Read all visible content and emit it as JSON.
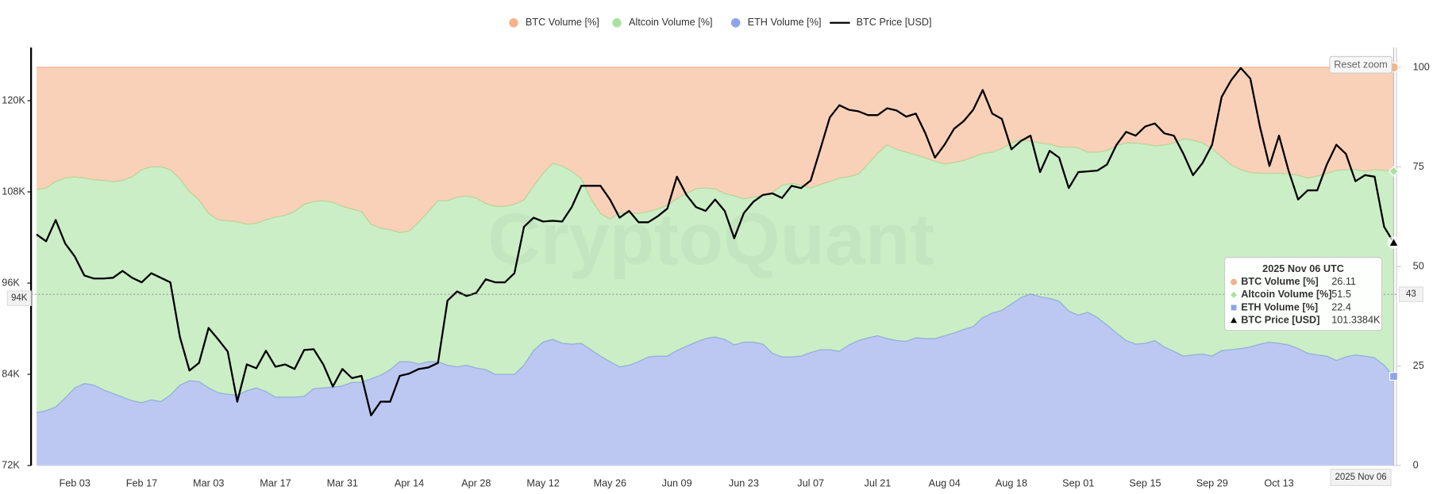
{
  "chart_data": {
    "type": "area",
    "stacked": true,
    "x": [
      "Jan 26",
      "Jan 28",
      "Jan 30",
      "Feb 01",
      "Feb 03",
      "Feb 05",
      "Feb 07",
      "Feb 09",
      "Feb 11",
      "Feb 13",
      "Feb 15",
      "Feb 17",
      "Feb 19",
      "Feb 21",
      "Feb 23",
      "Feb 25",
      "Feb 27",
      "Mar 01",
      "Mar 03",
      "Mar 05",
      "Mar 07",
      "Mar 09",
      "Mar 11",
      "Mar 13",
      "Mar 15",
      "Mar 17",
      "Mar 19",
      "Mar 21",
      "Mar 23",
      "Mar 25",
      "Mar 27",
      "Mar 29",
      "Mar 31",
      "Apr 02",
      "Apr 04",
      "Apr 06",
      "Apr 08",
      "Apr 10",
      "Apr 12",
      "Apr 14",
      "Apr 16",
      "Apr 18",
      "Apr 20",
      "Apr 22",
      "Apr 24",
      "Apr 26",
      "Apr 28",
      "Apr 30",
      "May 02",
      "May 04",
      "May 06",
      "May 08",
      "May 10",
      "May 12",
      "May 14",
      "May 16",
      "May 18",
      "May 20",
      "May 22",
      "May 24",
      "May 26",
      "May 28",
      "May 30",
      "Jun 01",
      "Jun 03",
      "Jun 05",
      "Jun 07",
      "Jun 09",
      "Jun 11",
      "Jun 13",
      "Jun 15",
      "Jun 17",
      "Jun 19",
      "Jun 21",
      "Jun 23",
      "Jun 25",
      "Jun 27",
      "Jun 29",
      "Jul 01",
      "Jul 03",
      "Jul 05",
      "Jul 07",
      "Jul 09",
      "Jul 11",
      "Jul 13",
      "Jul 15",
      "Jul 17",
      "Jul 19",
      "Jul 21",
      "Jul 23",
      "Jul 25",
      "Jul 27",
      "Jul 29",
      "Jul 31",
      "Aug 02",
      "Aug 04",
      "Aug 06",
      "Aug 08",
      "Aug 10",
      "Aug 12",
      "Aug 14",
      "Aug 16",
      "Aug 18",
      "Aug 20",
      "Aug 22",
      "Aug 24",
      "Aug 26",
      "Aug 28",
      "Aug 30",
      "Sep 01",
      "Sep 03",
      "Sep 05",
      "Sep 07",
      "Sep 09",
      "Sep 11",
      "Sep 13",
      "Sep 15",
      "Sep 17",
      "Sep 19",
      "Sep 21",
      "Sep 23",
      "Sep 25",
      "Sep 27",
      "Sep 29",
      "Oct 01",
      "Oct 03",
      "Oct 05",
      "Oct 07",
      "Oct 09",
      "Oct 11",
      "Oct 13",
      "Oct 15",
      "Oct 17",
      "Oct 19",
      "Oct 21",
      "Oct 23",
      "Oct 25",
      "Oct 27",
      "Oct 29",
      "Oct 31",
      "Nov 02",
      "Nov 04",
      "Nov 06"
    ],
    "xticks": [
      "Feb 03",
      "Feb 17",
      "Mar 03",
      "Mar 17",
      "Mar 31",
      "Apr 14",
      "Apr 28",
      "May 12",
      "May 26",
      "Jun 09",
      "Jun 23",
      "Jul 07",
      "Jul 21",
      "Aug 04",
      "Aug 18",
      "Sep 01",
      "Sep 15",
      "Sep 29",
      "Oct 13"
    ],
    "series": [
      {
        "name": "BTC Volume [%]",
        "type": "area",
        "axis": "y2",
        "color": "#f5b38a",
        "values": [
          30.7,
          30.3,
          28.7,
          27.8,
          27.5,
          27.8,
          28.2,
          28.4,
          28.7,
          28.4,
          27.5,
          25.7,
          25.0,
          25.0,
          25.7,
          28.0,
          31.2,
          33.3,
          36.7,
          38.3,
          38.5,
          38.8,
          39.4,
          39.2,
          38.3,
          37.6,
          37.2,
          36.2,
          34.4,
          33.7,
          33.5,
          33.9,
          34.9,
          35.6,
          36.2,
          39.4,
          40.4,
          40.8,
          41.5,
          41.1,
          38.8,
          36.2,
          33.5,
          33.5,
          32.6,
          32.3,
          32.8,
          34.2,
          34.9,
          34.9,
          34.4,
          33.3,
          29.8,
          26.6,
          24.1,
          24.8,
          26.1,
          28.0,
          33.0,
          36.7,
          38.1,
          36.5,
          36.7,
          36.7,
          36.2,
          35.6,
          34.6,
          33.0,
          31.7,
          30.5,
          30.3,
          30.5,
          31.7,
          32.3,
          33.0,
          32.6,
          32.1,
          31.4,
          29.6,
          29.1,
          29.6,
          30.3,
          29.4,
          28.7,
          27.8,
          27.5,
          26.8,
          24.3,
          21.6,
          19.5,
          20.6,
          21.3,
          22.0,
          22.7,
          23.6,
          24.3,
          23.9,
          23.4,
          22.5,
          21.6,
          21.3,
          20.4,
          19.0,
          18.1,
          18.6,
          19.0,
          19.3,
          20.0,
          20.0,
          20.2,
          21.3,
          21.3,
          20.9,
          19.7,
          19.0,
          19.0,
          19.3,
          19.7,
          19.5,
          19.0,
          17.9,
          18.3,
          19.0,
          20.4,
          22.5,
          24.5,
          25.7,
          26.4,
          26.6,
          26.6,
          26.6,
          26.8,
          27.1,
          27.8,
          27.3,
          26.6,
          25.9,
          25.7,
          25.7,
          26.1,
          25.7,
          25.9,
          26.11
        ]
      },
      {
        "name": "Altcoin Volume [%]",
        "type": "area",
        "axis": "y2",
        "color": "#a9e2a0",
        "values": [
          56.0,
          55.9,
          56.6,
          55.2,
          53.0,
          51.6,
          51.6,
          52.6,
          53.2,
          54.4,
          56.2,
          58.5,
          58.5,
          58.9,
          56.6,
          51.8,
          47.5,
          45.6,
          43.8,
          43.4,
          43.6,
          43.5,
          41.8,
          41.3,
          43.1,
          45.2,
          45.6,
          46.6,
          48.2,
          47.0,
          47.0,
          46.4,
          45.1,
          43.5,
          42.9,
          38.8,
          36.9,
          35.1,
          32.4,
          32.8,
          35.7,
          37.7,
          40.4,
          41.3,
          42.6,
          42.5,
          42.7,
          41.7,
          42.2,
          42.2,
          42.7,
          41.5,
          41.3,
          42.4,
          44.2,
          44.5,
          43.4,
          41.3,
          37.9,
          35.8,
          35.8,
          38.7,
          38.1,
          37.2,
          36.5,
          36.9,
          37.9,
          38.1,
          38.3,
          38.5,
          37.8,
          37.2,
          36.6,
          37.4,
          36.0,
          36.4,
          37.4,
          40.4,
          43.1,
          43.6,
          42.9,
          41.3,
          41.5,
          42.2,
          43.5,
          42.2,
          41.8,
          43.6,
          45.8,
          48.6,
          48.0,
          47.5,
          45.9,
          45.4,
          44.5,
          43.1,
          42.8,
          42.4,
          42.6,
          41.2,
          40.4,
          40.6,
          40.4,
          39.7,
          38.3,
          38.6,
          38.7,
          38.7,
          41.2,
          42.0,
          40.2,
          41.5,
          43.8,
          47.0,
          49.6,
          50.5,
          50.0,
          48.9,
          50.7,
          52.3,
          54.6,
          53.9,
          53.0,
          52.1,
          48.6,
          46.4,
          44.9,
          43.8,
          42.9,
          42.4,
          42.7,
          42.9,
          43.5,
          44.0,
          44.9,
          45.9,
          47.7,
          47.0,
          46.5,
          46.4,
          47.2,
          48.9,
          51.5
        ]
      },
      {
        "name": "ETH Volume [%]",
        "type": "area",
        "axis": "y2",
        "color": "#8fa3ea",
        "values": [
          13.3,
          13.8,
          14.7,
          17.0,
          19.5,
          20.6,
          20.2,
          19.0,
          18.1,
          17.2,
          16.3,
          15.8,
          16.5,
          16.1,
          17.7,
          20.2,
          21.3,
          21.1,
          19.5,
          18.3,
          17.9,
          17.7,
          18.8,
          19.5,
          18.6,
          17.2,
          17.2,
          17.2,
          17.4,
          19.3,
          19.5,
          19.7,
          20.0,
          20.9,
          20.9,
          21.8,
          22.7,
          24.1,
          26.1,
          26.1,
          25.5,
          26.1,
          26.1,
          25.2,
          24.8,
          25.2,
          24.5,
          24.1,
          22.9,
          22.9,
          22.9,
          25.2,
          28.9,
          31.0,
          31.7,
          30.7,
          30.5,
          30.7,
          29.1,
          27.5,
          26.1,
          24.8,
          25.2,
          26.1,
          27.3,
          27.5,
          27.5,
          28.9,
          30.0,
          31.0,
          31.9,
          32.3,
          31.7,
          30.3,
          31.0,
          31.0,
          30.5,
          28.2,
          27.3,
          27.3,
          27.5,
          28.4,
          29.1,
          29.1,
          28.7,
          30.3,
          31.4,
          32.1,
          32.6,
          31.9,
          31.4,
          31.2,
          32.1,
          31.9,
          31.9,
          32.6,
          33.3,
          34.2,
          34.9,
          37.2,
          38.3,
          39.0,
          40.6,
          42.2,
          43.1,
          42.4,
          42.0,
          41.3,
          38.8,
          37.8,
          38.5,
          37.2,
          35.3,
          33.3,
          31.4,
          30.5,
          30.7,
          31.4,
          29.8,
          28.7,
          27.5,
          27.8,
          28.0,
          27.5,
          28.9,
          29.1,
          29.4,
          29.8,
          30.5,
          31.0,
          30.7,
          30.3,
          29.4,
          28.2,
          27.8,
          27.5,
          26.4,
          27.3,
          27.8,
          27.5,
          27.1,
          25.2,
          22.4
        ]
      },
      {
        "name": "BTC Price [USD]",
        "type": "line",
        "color": "#000000",
        "values": [
          102400,
          101500,
          104300,
          101200,
          99500,
          97000,
          96600,
          96600,
          96700,
          97600,
          96700,
          96100,
          97300,
          96700,
          96100,
          88900,
          84500,
          85500,
          90100,
          88600,
          87000,
          80400,
          85300,
          84800,
          87100,
          85000,
          85300,
          84700,
          87200,
          87300,
          85300,
          82400,
          84700,
          83500,
          83800,
          78600,
          80400,
          80400,
          83800,
          84100,
          84700,
          84900,
          85500,
          93700,
          94900,
          94300,
          94700,
          96500,
          96100,
          96100,
          97300,
          103400,
          104600,
          104100,
          104200,
          104100,
          106000,
          108800,
          108800,
          108800,
          107000,
          104600,
          105500,
          104000,
          104000,
          104800,
          105800,
          110000,
          107600,
          106000,
          105500,
          107000,
          105500,
          101900,
          105200,
          106700,
          107600,
          107800,
          107200,
          108800,
          108500,
          109500,
          113600,
          117800,
          119400,
          118800,
          118600,
          118100,
          118100,
          119000,
          118700,
          117900,
          118300,
          115700,
          112500,
          114200,
          116300,
          117300,
          118800,
          121400,
          118300,
          117600,
          113600,
          114700,
          115400,
          110600,
          113400,
          112500,
          108500,
          110600,
          110700,
          110800,
          111600,
          114200,
          115900,
          115400,
          116600,
          117000,
          115700,
          115400,
          113000,
          110200,
          111800,
          114200,
          120500,
          122700,
          124300,
          122900,
          116600,
          111400,
          115400,
          110800,
          107000,
          108200,
          108200,
          111600,
          114200,
          113000,
          109400,
          110200,
          110000,
          103400,
          101338.4
        ]
      }
    ],
    "ylim": [
      72000,
      127000
    ],
    "yticks": [
      {
        "value": 72000,
        "label": "72K"
      },
      {
        "value": 84000,
        "label": "84K"
      },
      {
        "value": 96000,
        "label": "96K"
      },
      {
        "value": 108000,
        "label": "108K"
      },
      {
        "value": 120000,
        "label": "120K"
      }
    ],
    "y2lim": [
      0,
      105
    ],
    "y2ticks": [
      0,
      25,
      50,
      75,
      100
    ],
    "legend": "top",
    "tooltip": {
      "title": "2025 Nov 06 UTC",
      "price": "101.3384K"
    },
    "crosshair": {
      "y": {
        "value": 94000,
        "label": "94K"
      },
      "y2": 43,
      "x_label": "2025 Nov 06"
    },
    "reset_button": "Reset zoom",
    "watermark": "CryptoQuant"
  }
}
